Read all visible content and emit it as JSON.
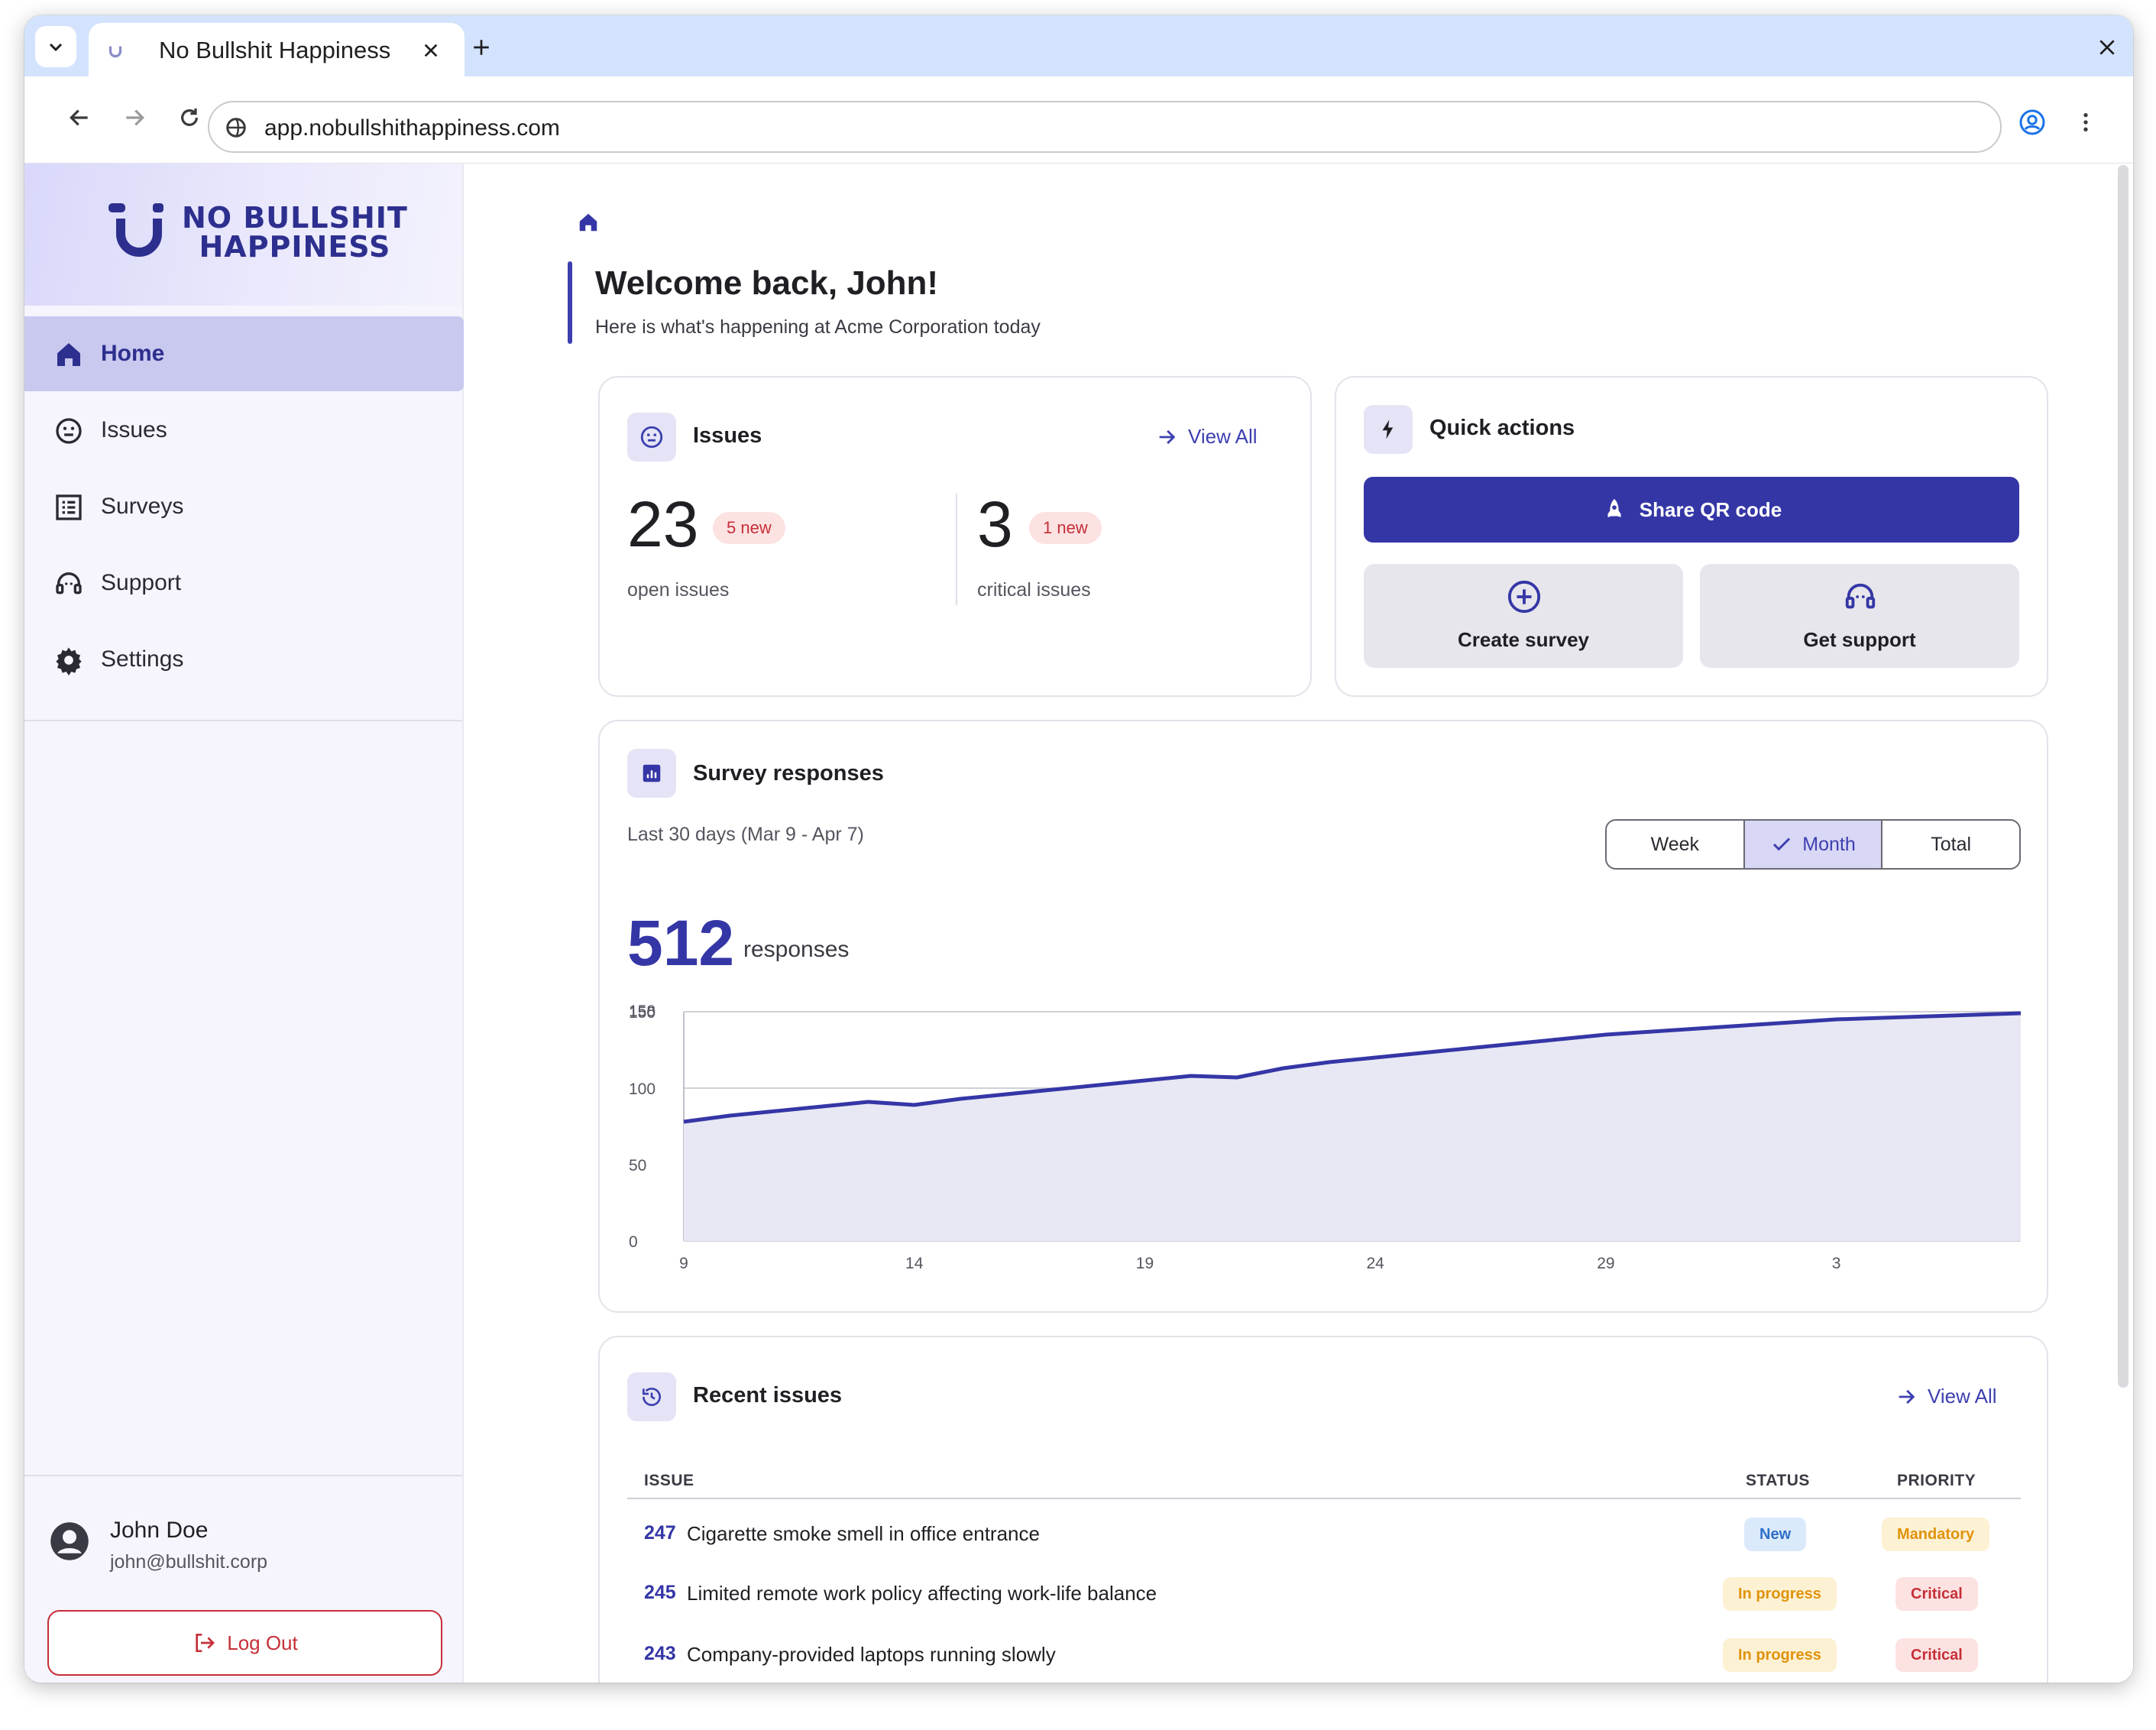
{
  "browser": {
    "tab_title": "No Bullshit Happiness",
    "url": "app.nobullshithappiness.com"
  },
  "sidebar": {
    "logo_line1": "NO BULLSHIT",
    "logo_line2": "HAPPINESS",
    "items": [
      {
        "label": "Home",
        "icon": "home-icon",
        "active": true
      },
      {
        "label": "Issues",
        "icon": "smiley-icon",
        "active": false
      },
      {
        "label": "Surveys",
        "icon": "list-icon",
        "active": false
      },
      {
        "label": "Support",
        "icon": "headset-icon",
        "active": false
      },
      {
        "label": "Settings",
        "icon": "gear-icon",
        "active": false
      }
    ],
    "user": {
      "name": "John Doe",
      "email": "john@bullshit.corp"
    },
    "logout_label": "Log Out"
  },
  "header": {
    "title": "Welcome back, John!",
    "subtitle": "Here is what's happening at Acme Corporation today"
  },
  "issues_card": {
    "title": "Issues",
    "view_all": "View All",
    "open_count": "23",
    "open_badge": "5 new",
    "open_label": "open issues",
    "critical_count": "3",
    "critical_badge": "1 new",
    "critical_label": "critical issues"
  },
  "quick_actions": {
    "title": "Quick actions",
    "share_label": "Share QR code",
    "create_survey_label": "Create survey",
    "get_support_label": "Get support"
  },
  "survey_responses": {
    "title": "Survey responses",
    "range_text": "Last 30 days (Mar 9 - Apr 7)",
    "segments": [
      "Week",
      "Month",
      "Total"
    ],
    "selected_segment": "Month",
    "count": "512",
    "count_label": "responses"
  },
  "chart_data": {
    "type": "area",
    "title": "",
    "xlabel": "",
    "ylabel": "",
    "x": [
      9,
      10,
      11,
      12,
      13,
      14,
      15,
      16,
      17,
      18,
      19,
      20,
      21,
      22,
      23,
      24,
      25,
      26,
      27,
      28,
      29,
      30,
      31,
      1,
      2,
      3,
      4,
      5,
      6,
      7
    ],
    "x_tick_labels": [
      "9",
      "14",
      "19",
      "24",
      "29",
      "3"
    ],
    "y_tick_labels": [
      "0",
      "50",
      "100",
      "150",
      "158"
    ],
    "ylim": [
      0,
      150
    ],
    "grid": true,
    "color": "#3536a6",
    "fill": "#e8e8f4",
    "series": [
      {
        "values": [
          78,
          82,
          85,
          88,
          91,
          89,
          93,
          96,
          99,
          102,
          105,
          108,
          107,
          113,
          117,
          120,
          123,
          126,
          129,
          132,
          135,
          137,
          139,
          141,
          143,
          145,
          146,
          147,
          148,
          149
        ]
      }
    ]
  },
  "recent_issues": {
    "title": "Recent issues",
    "view_all": "View All",
    "columns": {
      "issue": "ISSUE",
      "status": "STATUS",
      "priority": "PRIORITY"
    },
    "rows": [
      {
        "id": "247",
        "text": "Cigarette smoke smell in office entrance",
        "status": "New",
        "priority": "Mandatory"
      },
      {
        "id": "245",
        "text": "Limited remote work policy affecting work-life balance",
        "status": "In progress",
        "priority": "Critical"
      },
      {
        "id": "243",
        "text": "Company-provided laptops running slowly",
        "status": "In progress",
        "priority": "Critical"
      }
    ]
  },
  "colors": {
    "accent": "#3536a6",
    "accent_light": "#c9c8ef",
    "danger": "#c62f38",
    "warning": "#e0930c",
    "info": "#2f6fc7"
  }
}
